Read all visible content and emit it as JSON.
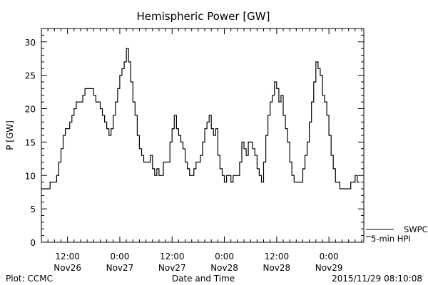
{
  "chart_data": {
    "type": "line",
    "title": "Hemispheric Power [GW]",
    "ylabel": "P [GW]",
    "xlabel": "Date and Time",
    "ylim": [
      0,
      32
    ],
    "yticks": [
      0,
      5,
      10,
      15,
      20,
      25,
      30
    ],
    "xlim": [
      0,
      148
    ],
    "xticks": [
      {
        "hour": 12,
        "top": "12:00",
        "bottom": "Nov26"
      },
      {
        "hour": 36,
        "top": "0:00",
        "bottom": "Nov27"
      },
      {
        "hour": 60,
        "top": "12:00",
        "bottom": "Nov27"
      },
      {
        "hour": 84,
        "top": "0:00",
        "bottom": "Nov28"
      },
      {
        "hour": 108,
        "top": "12:00",
        "bottom": "Nov28"
      },
      {
        "hour": 132,
        "top": "0:00",
        "bottom": "Nov29"
      }
    ],
    "grid": false,
    "legend": {
      "position": "right",
      "entries": [
        "SWPC",
        "5-min HPI"
      ]
    },
    "series": [
      {
        "name": "SWPC",
        "points": [
          [
            0,
            8
          ],
          [
            3,
            8
          ],
          [
            4,
            9
          ],
          [
            6,
            9
          ],
          [
            7,
            10
          ],
          [
            8,
            12
          ],
          [
            9,
            14
          ],
          [
            10,
            16
          ],
          [
            11,
            17
          ],
          [
            13,
            18
          ],
          [
            14,
            19
          ],
          [
            15,
            20
          ],
          [
            16,
            21
          ],
          [
            18,
            21
          ],
          [
            19,
            22
          ],
          [
            20,
            23
          ],
          [
            23,
            23
          ],
          [
            24,
            22
          ],
          [
            25,
            21
          ],
          [
            27,
            20
          ],
          [
            28,
            19
          ],
          [
            29,
            18
          ],
          [
            30,
            17
          ],
          [
            31,
            16
          ],
          [
            32,
            17
          ],
          [
            33,
            19
          ],
          [
            34,
            21
          ],
          [
            35,
            23
          ],
          [
            36,
            25
          ],
          [
            37,
            26
          ],
          [
            38,
            27
          ],
          [
            39,
            29
          ],
          [
            40,
            27
          ],
          [
            41,
            24
          ],
          [
            42,
            21
          ],
          [
            43,
            19
          ],
          [
            44,
            16
          ],
          [
            45,
            14
          ],
          [
            46,
            13
          ],
          [
            47,
            12
          ],
          [
            49,
            12
          ],
          [
            50,
            13
          ],
          [
            51,
            11
          ],
          [
            52,
            10
          ],
          [
            53,
            11
          ],
          [
            54,
            10
          ],
          [
            56,
            12
          ],
          [
            58,
            12
          ],
          [
            59,
            15
          ],
          [
            60,
            17
          ],
          [
            61,
            19
          ],
          [
            62,
            17
          ],
          [
            63,
            16
          ],
          [
            64,
            15
          ],
          [
            65,
            14
          ],
          [
            66,
            12
          ],
          [
            67,
            11
          ],
          [
            68,
            10
          ],
          [
            69,
            10
          ],
          [
            70,
            11
          ],
          [
            71,
            12
          ],
          [
            72,
            12
          ],
          [
            73,
            13
          ],
          [
            74,
            15
          ],
          [
            75,
            17
          ],
          [
            76,
            18
          ],
          [
            77,
            19
          ],
          [
            78,
            17
          ],
          [
            79,
            16
          ],
          [
            80,
            17
          ],
          [
            81,
            13
          ],
          [
            82,
            11
          ],
          [
            83,
            10
          ],
          [
            84,
            9
          ],
          [
            85,
            10
          ],
          [
            86,
            10
          ],
          [
            87,
            9
          ],
          [
            88,
            10
          ],
          [
            90,
            10
          ],
          [
            91,
            12
          ],
          [
            92,
            15
          ],
          [
            93,
            14
          ],
          [
            94,
            13
          ],
          [
            95,
            15
          ],
          [
            96,
            15
          ],
          [
            97,
            14
          ],
          [
            98,
            13
          ],
          [
            99,
            11
          ],
          [
            100,
            10
          ],
          [
            101,
            9
          ],
          [
            102,
            12
          ],
          [
            103,
            16
          ],
          [
            104,
            19
          ],
          [
            105,
            21
          ],
          [
            106,
            22
          ],
          [
            107,
            24
          ],
          [
            108,
            23
          ],
          [
            109,
            21
          ],
          [
            110,
            22
          ],
          [
            111,
            19
          ],
          [
            112,
            17
          ],
          [
            113,
            15
          ],
          [
            114,
            12
          ],
          [
            115,
            10
          ],
          [
            116,
            9
          ],
          [
            119,
            9
          ],
          [
            120,
            11
          ],
          [
            121,
            13
          ],
          [
            122,
            15
          ],
          [
            123,
            18
          ],
          [
            124,
            21
          ],
          [
            125,
            24
          ],
          [
            126,
            27
          ],
          [
            127,
            26
          ],
          [
            128,
            25
          ],
          [
            129,
            22
          ],
          [
            130,
            21
          ],
          [
            131,
            19
          ],
          [
            132,
            16
          ],
          [
            133,
            13
          ],
          [
            134,
            11
          ],
          [
            135,
            9
          ],
          [
            137,
            8
          ],
          [
            141,
            8
          ],
          [
            142,
            9
          ],
          [
            143,
            9
          ],
          [
            144,
            10
          ],
          [
            145,
            9
          ],
          [
            146,
            9
          ]
        ]
      },
      {
        "name": "5-min HPI",
        "points": []
      }
    ]
  },
  "footer": {
    "left": "Plot: CCMC",
    "right": "2015/11/29 08:10:08"
  }
}
